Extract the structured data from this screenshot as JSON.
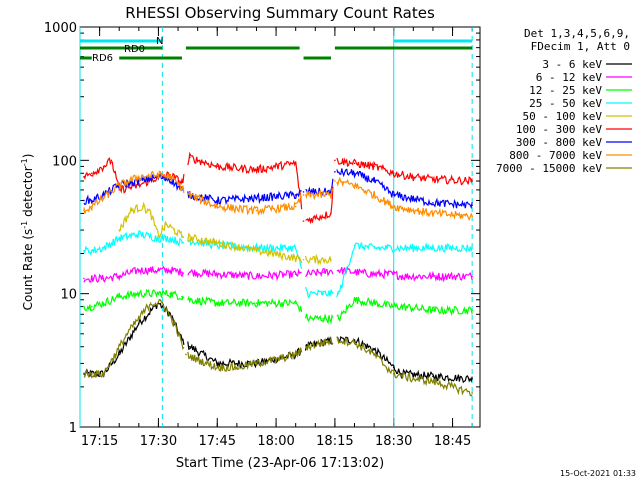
{
  "chart_data": {
    "type": "line",
    "title": "RHESSI Observing Summary Count Rates",
    "xlabel": "Start Time (23-Apr-06 17:13:02)",
    "ylabel_parts": [
      "Count Rate (s",
      "-1",
      " detector",
      "-1",
      ")"
    ],
    "y_scale": "log",
    "ylim": [
      1,
      1000
    ],
    "y_ticks": [
      1,
      10,
      100,
      1000
    ],
    "y_tick_labels": [
      "1",
      "10",
      "100",
      "1000"
    ],
    "xlim": [
      "17:10",
      "18:52"
    ],
    "x_ticks": [
      "17:15",
      "17:30",
      "17:45",
      "18:00",
      "18:15",
      "18:30",
      "18:45"
    ],
    "legend_header": [
      "Det 1,3,4,5,6,9,",
      "FDecim 1, Att 0"
    ],
    "legend": [
      {
        "label": "3 - 6 keV",
        "color": "#000000"
      },
      {
        "label": "6 - 12 keV",
        "color": "#ff00ff"
      },
      {
        "label": "12 - 25 keV",
        "color": "#00ff00"
      },
      {
        "label": "25 - 50 keV",
        "color": "#00ffff"
      },
      {
        "label": "50 - 100 keV",
        "color": "#d2c200"
      },
      {
        "label": "100 - 300 keV",
        "color": "#ff0000"
      },
      {
        "label": "300 - 800 keV",
        "color": "#0000ff"
      },
      {
        "label": "800 - 7000 keV",
        "color": "#ff8c00"
      },
      {
        "label": "7000 - 15000 keV",
        "color": "#808000"
      }
    ],
    "flags": [
      {
        "label": "N",
        "color": "#00e5ee",
        "segments": [
          [
            "17:10",
            "17:31"
          ],
          [
            "18:30",
            "18:50"
          ]
        ]
      },
      {
        "label": "RD0",
        "color": "#008000",
        "segments": [
          [
            "17:10",
            "17:31"
          ],
          [
            "17:37",
            "18:06"
          ],
          [
            "18:15",
            "18:50"
          ]
        ]
      },
      {
        "label": "RD6",
        "color": "#008000",
        "segments": [
          [
            "17:10",
            "17:13"
          ],
          [
            "17:20",
            "17:36"
          ],
          [
            "18:07",
            "18:14"
          ]
        ]
      }
    ],
    "vlines": [
      {
        "time": "17:10",
        "color": "#00e5ee",
        "style": "solid"
      },
      {
        "time": "17:31",
        "color": "#00e5ee",
        "style": "dashed"
      },
      {
        "time": "18:30",
        "color": "#00e5ee",
        "style": "solid"
      },
      {
        "time": "18:50",
        "color": "#00e5ee",
        "style": "dashed"
      }
    ],
    "gaps": [
      [
        "17:36.5",
        "17:37.5"
      ],
      [
        "18:06.5",
        "18:07.5"
      ],
      [
        "18:14.5",
        "18:15.5"
      ]
    ],
    "series": [
      {
        "name": "3 - 6 keV",
        "color": "#000000",
        "x": [
          "17:11",
          "17:13",
          "17:16",
          "17:20",
          "17:25",
          "17:30",
          "17:33",
          "17:36",
          "17:38",
          "17:45",
          "17:55",
          "18:05",
          "18:08",
          "18:12",
          "18:16",
          "18:20",
          "18:25",
          "18:30",
          "18:32",
          "18:40",
          "18:50"
        ],
        "y": [
          2.5,
          2.5,
          2.5,
          3.5,
          6,
          8.5,
          7,
          4.5,
          4,
          3,
          3,
          3.5,
          4,
          4.3,
          4.5,
          4.5,
          3.8,
          2.8,
          2.5,
          2.4,
          2.3
        ]
      },
      {
        "name": "6 - 12 keV",
        "color": "#ff00ff",
        "x": [
          "17:11",
          "17:13",
          "17:16",
          "17:20",
          "17:25",
          "17:30",
          "17:33",
          "17:36",
          "17:38",
          "17:45",
          "17:55",
          "18:05",
          "18:08",
          "18:12",
          "18:16",
          "18:20",
          "18:25",
          "18:30",
          "18:32",
          "18:40",
          "18:50"
        ],
        "y": [
          13,
          13,
          13,
          13.5,
          15,
          15,
          15,
          14.5,
          14.5,
          14,
          13.5,
          14,
          14,
          14.5,
          15,
          14.5,
          14,
          14,
          13.5,
          13.5,
          13.5
        ]
      },
      {
        "name": "12 - 25 keV",
        "color": "#00ff00",
        "x": [
          "17:11",
          "17:13",
          "17:16",
          "17:20",
          "17:25",
          "17:30",
          "17:33",
          "17:36",
          "17:38",
          "17:45",
          "17:55",
          "18:05",
          "18:08",
          "18:12",
          "18:16",
          "18:20",
          "18:25",
          "18:30",
          "18:32",
          "18:40",
          "18:50"
        ],
        "y": [
          8,
          8,
          8.5,
          9.5,
          10,
          10,
          10,
          9.5,
          9,
          8.5,
          8.5,
          8.5,
          6.5,
          6.5,
          6.5,
          9,
          8.5,
          8,
          8,
          7.5,
          7.5
        ]
      },
      {
        "name": "25 - 50 keV",
        "color": "#00ffff",
        "x": [
          "17:11",
          "17:13",
          "17:16",
          "17:20",
          "17:25",
          "17:30",
          "17:33",
          "17:36",
          "17:38",
          "17:45",
          "17:55",
          "18:05",
          "18:08",
          "18:12",
          "18:16",
          "18:20",
          "18:25",
          "18:30",
          "18:32",
          "18:40",
          "18:50"
        ],
        "y": [
          21,
          21,
          22,
          26,
          28,
          26,
          26,
          24,
          25,
          23,
          22,
          22,
          10,
          10,
          10,
          23,
          22,
          22,
          22,
          22,
          22
        ]
      },
      {
        "name": "50 - 100 keV",
        "color": "#d2c200",
        "x": [
          "17:20",
          "17:23",
          "17:26",
          "17:28",
          "17:30",
          "17:32",
          "17:34",
          "17:36",
          "18:07",
          "18:10",
          "18:14"
        ],
        "y": [
          30,
          42,
          45,
          40,
          27,
          33,
          30,
          27,
          18,
          18,
          18
        ]
      },
      {
        "name": "100 - 300 keV",
        "color": "#ff0000",
        "x": [
          "17:11",
          "17:13",
          "17:16",
          "17:18",
          "17:20",
          "17:25",
          "17:30",
          "17:33",
          "17:36",
          "17:38",
          "17:45",
          "17:55",
          "18:05",
          "18:07",
          "18:10",
          "18:14",
          "18:15",
          "18:20",
          "18:25",
          "18:30",
          "18:35",
          "18:40",
          "18:50"
        ],
        "y": [
          75,
          80,
          90,
          100,
          60,
          65,
          75,
          78,
          68,
          105,
          90,
          85,
          95,
          35,
          37,
          40,
          100,
          95,
          90,
          80,
          75,
          72,
          70
        ]
      },
      {
        "name": "300 - 800 keV",
        "color": "#0000ff",
        "x": [
          "17:11",
          "17:13",
          "17:16",
          "17:20",
          "17:25",
          "17:30",
          "17:33",
          "17:36",
          "17:38",
          "17:45",
          "17:55",
          "18:05",
          "18:07",
          "18:10",
          "18:14",
          "18:15",
          "18:20",
          "18:25",
          "18:30",
          "18:40",
          "18:50"
        ],
        "y": [
          50,
          50,
          55,
          65,
          70,
          75,
          72,
          60,
          55,
          50,
          52,
          55,
          58,
          58,
          58,
          82,
          80,
          70,
          55,
          48,
          46
        ]
      },
      {
        "name": "800 - 7000 keV",
        "color": "#ff8c00",
        "x": [
          "17:11",
          "17:13",
          "17:16",
          "17:20",
          "17:25",
          "17:30",
          "17:33",
          "17:36",
          "17:38",
          "17:45",
          "17:55",
          "18:05",
          "18:07",
          "18:10",
          "18:14",
          "18:15",
          "18:20",
          "18:25",
          "18:30",
          "18:40",
          "18:50"
        ],
        "y": [
          42,
          45,
          52,
          65,
          75,
          78,
          75,
          62,
          55,
          45,
          42,
          45,
          55,
          55,
          55,
          70,
          65,
          55,
          45,
          40,
          38
        ]
      },
      {
        "name": "7000 - 15000 keV",
        "color": "#808000",
        "x": [
          "17:11",
          "17:13",
          "17:16",
          "17:19",
          "17:22",
          "17:25",
          "17:28",
          "17:31",
          "17:34",
          "17:37",
          "17:40",
          "17:45",
          "17:50",
          "17:55",
          "18:00",
          "18:05",
          "18:08",
          "18:12",
          "18:16",
          "18:20",
          "18:25",
          "18:30",
          "18:35",
          "18:40",
          "18:50"
        ],
        "y": [
          2.5,
          2.5,
          2.5,
          3.5,
          5,
          6.5,
          8.5,
          8.5,
          6,
          3.5,
          3.2,
          2.8,
          2.8,
          3,
          3.2,
          3.5,
          4,
          4.3,
          4.5,
          4.3,
          3.5,
          2.5,
          2.3,
          2.2,
          1.8
        ]
      }
    ]
  },
  "footer": {
    "timestamp": "15-Oct-2021 01:33"
  }
}
